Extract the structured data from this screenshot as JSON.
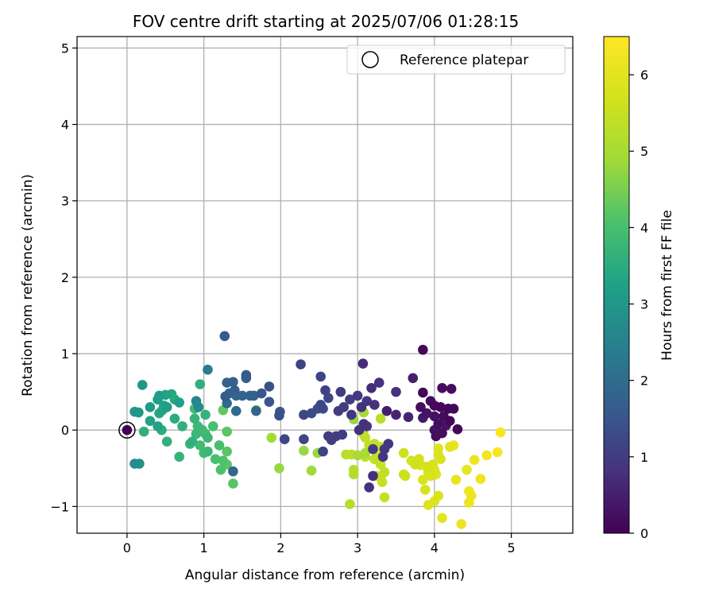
{
  "chart_data": {
    "type": "scatter",
    "title": "FOV centre drift starting at 2025/07/06 01:28:15",
    "xlabel": "Angular distance from reference (arcmin)",
    "ylabel": "Rotation from reference (arcmin)",
    "xlim": [
      -0.65,
      5.8
    ],
    "ylim": [
      -1.35,
      5.15
    ],
    "xticks": [
      "0",
      "1",
      "2",
      "3",
      "4",
      "5"
    ],
    "yticks": [
      "−1",
      "0",
      "1",
      "2",
      "3",
      "4",
      "5"
    ],
    "grid": true,
    "legend": {
      "placement": "top-right",
      "entries": [
        "Reference platepar"
      ]
    },
    "reference_point": {
      "x": 0,
      "y": 0
    },
    "colorbar": {
      "label": "Hours from first FF file",
      "range": [
        0,
        6.5
      ],
      "ticks": [
        "0",
        "1",
        "2",
        "3",
        "4",
        "5",
        "6"
      ],
      "colormap": "viridis"
    },
    "points": [
      [
        0.0,
        0.0,
        0.0
      ],
      [
        3.85,
        1.05,
        0.1
      ],
      [
        4.3,
        0.01,
        0.1
      ],
      [
        4.22,
        0.54,
        0.2
      ],
      [
        4.1,
        0.55,
        0.2
      ],
      [
        3.85,
        0.49,
        0.1
      ],
      [
        4.18,
        0.28,
        0.1
      ],
      [
        4.08,
        0.3,
        0.1
      ],
      [
        4.0,
        0.32,
        0.1
      ],
      [
        4.12,
        0.18,
        0.2
      ],
      [
        4.05,
        0.08,
        0.2
      ],
      [
        4.2,
        0.12,
        0.1
      ],
      [
        4.15,
        0.06,
        0.3
      ],
      [
        4.0,
        0.0,
        0.3
      ],
      [
        4.02,
        -0.08,
        0.2
      ],
      [
        3.95,
        0.38,
        0.2
      ],
      [
        3.82,
        0.3,
        0.2
      ],
      [
        3.9,
        0.22,
        0.3
      ],
      [
        4.25,
        0.28,
        0.15
      ],
      [
        4.0,
        0.18,
        0.25
      ],
      [
        4.1,
        -0.04,
        0.2
      ],
      [
        3.85,
        0.16,
        0.35
      ],
      [
        3.72,
        0.68,
        0.5
      ],
      [
        3.66,
        0.17,
        0.6
      ],
      [
        3.5,
        0.2,
        0.6
      ],
      [
        3.38,
        0.25,
        0.5
      ],
      [
        3.5,
        0.5,
        0.8
      ],
      [
        3.28,
        0.62,
        0.8
      ],
      [
        3.18,
        0.55,
        0.7
      ],
      [
        3.07,
        0.87,
        0.7
      ],
      [
        3.0,
        0.45,
        0.9
      ],
      [
        3.12,
        0.38,
        0.9
      ],
      [
        3.22,
        0.33,
        0.8
      ],
      [
        3.05,
        0.3,
        0.8
      ],
      [
        3.08,
        0.08,
        0.8
      ],
      [
        3.12,
        0.05,
        0.85
      ],
      [
        3.02,
        0.0,
        0.8
      ],
      [
        2.92,
        0.2,
        0.9
      ],
      [
        2.9,
        0.4,
        1.0
      ],
      [
        2.78,
        0.5,
        1.0
      ],
      [
        2.82,
        0.3,
        1.0
      ],
      [
        2.75,
        0.25,
        1.0
      ],
      [
        2.58,
        0.52,
        1.1
      ],
      [
        2.52,
        0.7,
        1.2
      ],
      [
        2.62,
        0.42,
        1.2
      ],
      [
        2.52,
        0.33,
        1.2
      ],
      [
        2.55,
        0.28,
        1.3
      ],
      [
        2.48,
        0.28,
        1.4
      ],
      [
        2.4,
        0.22,
        1.3
      ],
      [
        2.3,
        0.2,
        1.2
      ],
      [
        2.26,
        0.86,
        1.1
      ],
      [
        2.72,
        -0.08,
        1.0
      ],
      [
        2.8,
        -0.06,
        1.0
      ],
      [
        2.62,
        -0.08,
        1.0
      ],
      [
        2.66,
        -0.13,
        1.0
      ],
      [
        2.55,
        -0.28,
        1.1
      ],
      [
        2.3,
        -0.12,
        1.2
      ],
      [
        2.05,
        -0.12,
        1.2
      ],
      [
        1.85,
        0.37,
        1.5
      ],
      [
        1.85,
        0.57,
        1.4
      ],
      [
        1.75,
        0.48,
        1.5
      ],
      [
        1.98,
        0.19,
        1.4
      ],
      [
        1.99,
        0.24,
        1.5
      ],
      [
        3.2,
        -0.25,
        1.0
      ],
      [
        3.35,
        -0.25,
        0.9
      ],
      [
        3.33,
        -0.35,
        0.9
      ],
      [
        3.4,
        -0.18,
        0.9
      ],
      [
        3.2,
        -0.6,
        0.8
      ],
      [
        3.15,
        -0.75,
        0.8
      ],
      [
        1.27,
        1.23,
        1.6
      ],
      [
        1.28,
        0.44,
        1.6
      ],
      [
        1.3,
        0.62,
        1.8
      ],
      [
        1.38,
        0.63,
        1.7
      ],
      [
        1.4,
        0.52,
        1.7
      ],
      [
        1.33,
        0.48,
        1.8
      ],
      [
        1.42,
        0.45,
        1.9
      ],
      [
        1.55,
        0.68,
        1.7
      ],
      [
        1.55,
        0.72,
        1.6
      ],
      [
        1.5,
        0.45,
        1.8
      ],
      [
        1.6,
        0.45,
        1.8
      ],
      [
        1.65,
        0.45,
        1.7
      ],
      [
        1.42,
        0.25,
        1.9
      ],
      [
        1.68,
        0.25,
        1.8
      ],
      [
        1.38,
        -0.54,
        1.9
      ],
      [
        1.3,
        0.35,
        2.0
      ],
      [
        1.05,
        0.79,
        2.4
      ],
      [
        0.9,
        0.38,
        2.6
      ],
      [
        0.93,
        0.3,
        2.7
      ],
      [
        0.1,
        -0.44,
        2.8
      ],
      [
        0.16,
        -0.44,
        2.9
      ],
      [
        0.2,
        0.59,
        3.0
      ],
      [
        0.1,
        0.24,
        3.0
      ],
      [
        0.15,
        0.23,
        3.0
      ],
      [
        0.3,
        0.3,
        3.1
      ],
      [
        0.4,
        0.4,
        3.2
      ],
      [
        0.42,
        0.45,
        3.2
      ],
      [
        0.5,
        0.46,
        3.3
      ],
      [
        0.58,
        0.47,
        3.4
      ],
      [
        0.62,
        0.4,
        3.4
      ],
      [
        0.68,
        0.36,
        3.2
      ],
      [
        0.48,
        0.32,
        3.3
      ],
      [
        0.52,
        0.3,
        3.2
      ],
      [
        0.46,
        0.26,
        3.3
      ],
      [
        0.42,
        0.22,
        3.4
      ],
      [
        0.3,
        0.12,
        3.3
      ],
      [
        0.4,
        0.05,
        3.3
      ],
      [
        0.45,
        0.0,
        3.5
      ],
      [
        0.52,
        -0.15,
        3.6
      ],
      [
        0.22,
        -0.02,
        3.6
      ],
      [
        0.68,
        -0.35,
        3.7
      ],
      [
        0.62,
        0.15,
        3.5
      ],
      [
        0.72,
        0.05,
        3.6
      ],
      [
        0.85,
        -0.15,
        3.6
      ],
      [
        0.82,
        -0.18,
        3.7
      ],
      [
        0.9,
        -0.05,
        3.8
      ],
      [
        0.88,
        0.15,
        3.7
      ],
      [
        0.92,
        0.05,
        3.8
      ],
      [
        0.98,
        0.0,
        3.9
      ],
      [
        1.02,
        -0.05,
        3.9
      ],
      [
        1.05,
        -0.1,
        3.8
      ],
      [
        0.95,
        -0.2,
        3.9
      ],
      [
        1.0,
        -0.3,
        3.9
      ],
      [
        1.05,
        -0.28,
        3.8
      ],
      [
        1.02,
        0.2,
        3.7
      ],
      [
        0.95,
        0.6,
        3.6
      ],
      [
        0.88,
        0.28,
        3.9
      ],
      [
        1.2,
        -0.2,
        4.0
      ],
      [
        1.12,
        0.05,
        4.0
      ],
      [
        1.15,
        -0.38,
        4.0
      ],
      [
        1.25,
        -0.4,
        4.1
      ],
      [
        1.22,
        -0.52,
        4.1
      ],
      [
        1.3,
        -0.28,
        4.2
      ],
      [
        1.3,
        -0.02,
        4.2
      ],
      [
        1.38,
        -0.7,
        4.2
      ],
      [
        1.3,
        -0.45,
        4.2
      ],
      [
        1.25,
        0.26,
        4.3
      ],
      [
        1.68,
        0.26,
        4.4
      ],
      [
        2.95,
        0.14,
        4.8
      ],
      [
        3.08,
        0.23,
        5.0
      ],
      [
        3.0,
        -0.33,
        5.0
      ],
      [
        3.1,
        -0.3,
        5.0
      ],
      [
        1.88,
        -0.1,
        4.9
      ],
      [
        1.98,
        -0.5,
        4.8
      ],
      [
        2.48,
        -0.3,
        4.8
      ],
      [
        2.4,
        -0.53,
        4.9
      ],
      [
        2.3,
        -0.27,
        4.8
      ],
      [
        2.9,
        -0.97,
        5.2
      ],
      [
        2.95,
        -0.52,
        5.2
      ],
      [
        2.95,
        -0.58,
        5.2
      ],
      [
        2.85,
        -0.32,
        5.3
      ],
      [
        2.92,
        -0.32,
        5.3
      ],
      [
        3.08,
        -0.06,
        5.4
      ],
      [
        3.15,
        -0.2,
        5.4
      ],
      [
        3.22,
        -0.18,
        5.4
      ],
      [
        3.3,
        -0.22,
        5.5
      ],
      [
        3.28,
        -0.35,
        5.5
      ],
      [
        3.22,
        -0.38,
        5.4
      ],
      [
        3.3,
        -0.45,
        5.5
      ],
      [
        3.35,
        -0.55,
        5.4
      ],
      [
        3.3,
        -0.62,
        5.5
      ],
      [
        3.25,
        -0.6,
        5.6
      ],
      [
        3.32,
        -0.68,
        5.5
      ],
      [
        3.35,
        -0.88,
        5.5
      ],
      [
        3.3,
        0.15,
        5.3
      ],
      [
        3.1,
        -0.1,
        5.4
      ],
      [
        3.1,
        -0.35,
        5.3
      ],
      [
        3.6,
        -0.3,
        5.6
      ],
      [
        3.6,
        -0.58,
        5.6
      ],
      [
        3.62,
        -0.6,
        5.6
      ],
      [
        3.7,
        -0.4,
        5.7
      ],
      [
        3.75,
        -0.45,
        5.6
      ],
      [
        3.8,
        -0.38,
        5.7
      ],
      [
        3.82,
        -0.46,
        5.8
      ],
      [
        3.85,
        -0.65,
        5.8
      ],
      [
        3.88,
        -0.78,
        5.8
      ],
      [
        3.9,
        -0.48,
        5.7
      ],
      [
        3.92,
        -0.55,
        5.8
      ],
      [
        3.95,
        -0.6,
        5.8
      ],
      [
        3.98,
        -0.45,
        5.8
      ],
      [
        4.0,
        -0.52,
        5.9
      ],
      [
        4.02,
        -0.58,
        5.9
      ],
      [
        3.92,
        -0.98,
        5.9
      ],
      [
        4.0,
        -0.93,
        5.9
      ],
      [
        4.05,
        -0.86,
        5.8
      ],
      [
        4.05,
        -0.32,
        5.9
      ],
      [
        4.08,
        -0.38,
        5.8
      ],
      [
        4.05,
        -0.24,
        5.9
      ],
      [
        4.1,
        -1.15,
        6.0
      ],
      [
        4.2,
        -0.22,
        6.0
      ],
      [
        4.25,
        -0.2,
        6.1
      ],
      [
        4.28,
        -0.65,
        6.1
      ],
      [
        4.35,
        -1.23,
        6.2
      ],
      [
        4.42,
        -0.52,
        6.1
      ],
      [
        4.45,
        -0.8,
        6.2
      ],
      [
        4.45,
        -0.95,
        6.2
      ],
      [
        4.48,
        -0.86,
        6.2
      ],
      [
        4.52,
        -0.39,
        6.2
      ],
      [
        4.6,
        -0.64,
        6.2
      ],
      [
        4.68,
        -0.33,
        6.3
      ],
      [
        4.82,
        -0.29,
        6.4
      ],
      [
        4.86,
        -0.03,
        6.4
      ]
    ]
  }
}
